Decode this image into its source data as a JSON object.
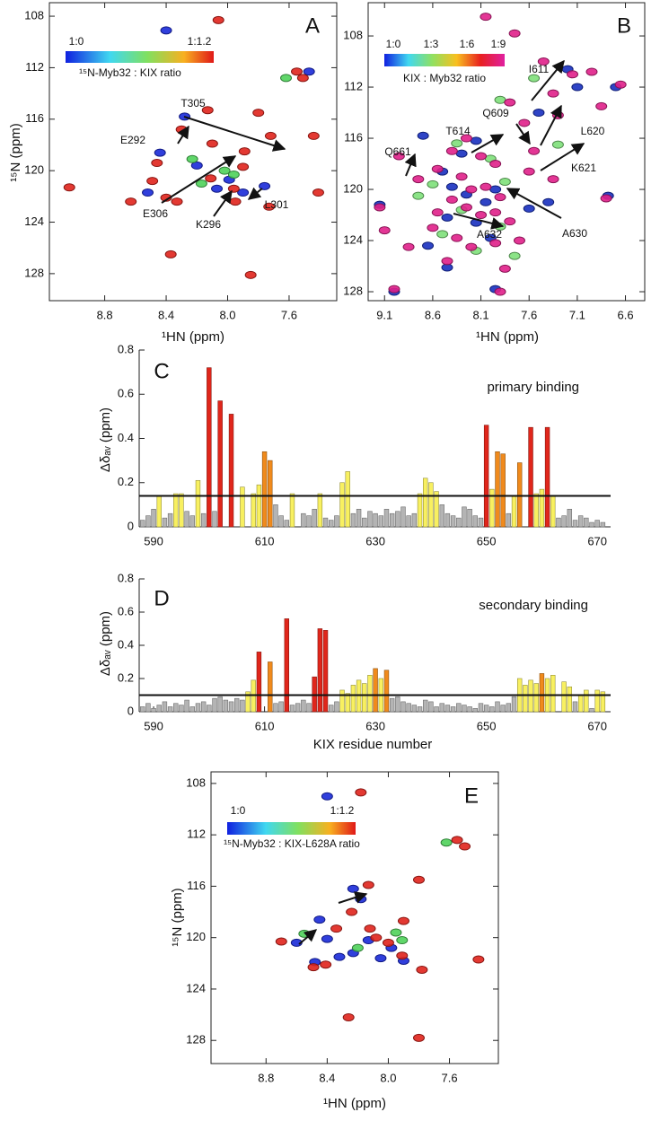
{
  "chart_data": [
    {
      "type": "scatter",
      "panel_label": "A",
      "xlabel": "¹HN (ppm)",
      "ylabel": "¹⁵N (ppm)",
      "xlim": [
        9.16,
        7.29
      ],
      "ylim": [
        130.1,
        106.95
      ],
      "xticks": [
        8.8,
        8.4,
        {
          "value": 8,
          "label": "8.0"
        },
        7.6
      ],
      "yticks": [
        108,
        112,
        116,
        120,
        124,
        128
      ],
      "colorbar": {
        "labels": [
          "1:0",
          "1:1.2"
        ],
        "title": "¹⁵N-Myb32 : KIX ratio"
      },
      "annotations": [
        "T305",
        "E292",
        "E306",
        "K296",
        "L301"
      ],
      "series": [
        {
          "color": "#1a2ad8",
          "x": [
            8.4,
            8.28,
            8.2,
            8.44,
            7.99,
            8.07,
            7.9,
            7.76,
            8.52,
            7.47
          ],
          "y": [
            109.1,
            115.8,
            119.6,
            118.6,
            120.7,
            121.4,
            121.7,
            121.2,
            121.7,
            112.3
          ]
        },
        {
          "color": "#4fd15a",
          "x": [
            8.23,
            7.96,
            7.62,
            8.17,
            8.02
          ],
          "y": [
            119.1,
            120.3,
            112.8,
            121.0,
            120.0
          ]
        },
        {
          "color": "#e0231c",
          "x": [
            8.06,
            7.55,
            7.51,
            7.8,
            8.13,
            8.3,
            7.44,
            7.89,
            8.1,
            7.72,
            7.9,
            8.46,
            8.11,
            8.49,
            7.41,
            7.95,
            7.73,
            8.33,
            8.4,
            8.63,
            7.96,
            8.37,
            7.85,
            9.03
          ],
          "y": [
            108.3,
            112.3,
            112.8,
            115.5,
            115.3,
            116.8,
            117.3,
            118.5,
            117.9,
            117.3,
            119.7,
            119.4,
            120.6,
            120.8,
            121.7,
            122.4,
            122.8,
            122.4,
            122.1,
            122.4,
            121.4,
            126.5,
            128.1,
            121.3
          ]
        }
      ]
    },
    {
      "type": "scatter",
      "panel_label": "B",
      "xlabel": "¹HN (ppm)",
      "xlim": [
        9.27,
        6.4
      ],
      "ylim": [
        128.7,
        105.4
      ],
      "xticks": [
        9.1,
        8.6,
        8.1,
        7.6,
        7.1,
        6.6
      ],
      "yticks": [
        108,
        112,
        116,
        120,
        124,
        128
      ],
      "colorbar": {
        "labels": [
          "1:0",
          "1:3",
          "1:6",
          "1:9"
        ],
        "title": "KIX : Myb32 ratio"
      },
      "annotations": [
        "I611",
        "L620",
        "K621",
        "A630",
        "A632",
        "Q661",
        "T614",
        "Q609"
      ],
      "series": [
        {
          "color": "#1830c0",
          "x": [
            7.1,
            6.7,
            7.5,
            8.15,
            8.3,
            8.5,
            8.4,
            8.25,
            8.05,
            7.95,
            8.15,
            8.45,
            8.65,
            8.0,
            7.6,
            7.4,
            9.15,
            8.45,
            7.95,
            9.0,
            8.7,
            6.78,
            7.2
          ],
          "y": [
            112.0,
            112.0,
            114.0,
            116.2,
            117.2,
            118.6,
            119.8,
            120.4,
            121.0,
            120.0,
            122.6,
            122.2,
            124.4,
            123.8,
            121.5,
            121.0,
            121.2,
            126.1,
            127.8,
            128.0,
            115.8,
            120.5,
            110.6
          ]
        },
        {
          "color": "#7ee07a",
          "x": [
            7.9,
            7.55,
            8.35,
            8.0,
            8.6,
            7.85,
            8.3,
            7.9,
            8.5,
            7.75,
            7.3,
            8.75,
            8.15
          ],
          "y": [
            113.0,
            111.3,
            116.4,
            117.6,
            119.6,
            119.4,
            121.6,
            122.9,
            123.5,
            125.2,
            116.5,
            120.5,
            124.8
          ]
        },
        {
          "color": "#e0208a",
          "x": [
            8.05,
            7.75,
            7.45,
            7.35,
            7.15,
            6.95,
            6.65,
            6.85,
            7.8,
            7.55,
            7.6,
            7.35,
            8.95,
            8.75,
            8.55,
            8.4,
            8.25,
            8.1,
            7.95,
            8.3,
            8.2,
            8.05,
            7.9,
            8.4,
            8.25,
            8.1,
            7.95,
            7.8,
            8.55,
            8.6,
            8.35,
            8.2,
            7.95,
            7.7,
            9.15,
            9.1,
            8.85,
            8.45,
            7.85,
            9.0,
            7.9,
            6.8,
            7.3,
            7.65
          ],
          "y": [
            106.5,
            107.8,
            110.0,
            112.5,
            111.0,
            110.8,
            111.8,
            113.5,
            113.2,
            117.0,
            118.6,
            119.2,
            117.4,
            119.2,
            118.4,
            117.0,
            116.0,
            117.4,
            118.0,
            119.0,
            120.0,
            119.8,
            120.6,
            120.8,
            121.4,
            122.0,
            121.8,
            122.5,
            121.8,
            123.0,
            123.8,
            124.5,
            124.2,
            124.0,
            121.4,
            123.2,
            124.5,
            125.6,
            126.2,
            127.8,
            128.0,
            120.7,
            114.2,
            114.8
          ]
        }
      ]
    },
    {
      "type": "bar",
      "panel_label": "C",
      "title": "primary binding",
      "ylabel": "Δδₐᵥ (ppm)",
      "xlim": [
        587.4,
        672.4
      ],
      "ylim": [
        0,
        0.8
      ],
      "xticks": [
        590,
        610,
        630,
        650,
        670
      ],
      "yticks": [
        0,
        0.2,
        0.4,
        0.6,
        0.8
      ],
      "threshold": 0.14,
      "series": [
        {
          "color": "#b4b4b4",
          "x": [
            588,
            589,
            590,
            592,
            593,
            596,
            597,
            599,
            601,
            612,
            613,
            614,
            617,
            618,
            619,
            621,
            622,
            623,
            626,
            627,
            628,
            629,
            630,
            631,
            632,
            633,
            634,
            635,
            636,
            637,
            642,
            643,
            644,
            645,
            646,
            647,
            648,
            649,
            654,
            663,
            664,
            665,
            666,
            667,
            668,
            669,
            670,
            671
          ],
          "values": [
            0.03,
            0.05,
            0.08,
            0.04,
            0.06,
            0.07,
            0.05,
            0.06,
            0.07,
            0.1,
            0.05,
            0.03,
            0.06,
            0.05,
            0.08,
            0.04,
            0.03,
            0.05,
            0.06,
            0.08,
            0.04,
            0.07,
            0.06,
            0.05,
            0.08,
            0.06,
            0.07,
            0.09,
            0.05,
            0.06,
            0.1,
            0.06,
            0.05,
            0.04,
            0.09,
            0.08,
            0.05,
            0.04,
            0.06,
            0.04,
            0.05,
            0.08,
            0.03,
            0.05,
            0.04,
            0.02,
            0.03,
            0.02
          ]
        },
        {
          "color": "#f8f060",
          "x": [
            591,
            594,
            595,
            598,
            606,
            608,
            609,
            615,
            620,
            624,
            625,
            638,
            639,
            640,
            641,
            651,
            655,
            659,
            660,
            662
          ],
          "values": [
            0.14,
            0.15,
            0.15,
            0.21,
            0.18,
            0.15,
            0.19,
            0.15,
            0.15,
            0.2,
            0.25,
            0.15,
            0.22,
            0.2,
            0.16,
            0.17,
            0.14,
            0.15,
            0.17,
            0.14
          ]
        },
        {
          "color": "#f08a1c",
          "x": [
            610,
            611,
            652,
            653,
            656
          ],
          "values": [
            0.34,
            0.3,
            0.34,
            0.33,
            0.29
          ]
        },
        {
          "color": "#e0261b",
          "x": [
            600,
            602,
            604,
            650,
            658,
            661
          ],
          "values": [
            0.72,
            0.57,
            0.51,
            0.46,
            0.45,
            0.45
          ]
        }
      ]
    },
    {
      "type": "bar",
      "panel_label": "D",
      "title": "secondary binding",
      "ylabel": "Δδₐᵥ (ppm)",
      "xlabel": "KIX residue number",
      "xlim": [
        587.4,
        672.4
      ],
      "ylim": [
        0,
        0.8
      ],
      "xticks": [
        590,
        610,
        630,
        650,
        670
      ],
      "yticks": [
        0,
        0.2,
        0.4,
        0.6,
        0.8
      ],
      "threshold": 0.1,
      "series": [
        {
          "color": "#b4b4b4",
          "x": [
            588,
            589,
            590,
            591,
            592,
            593,
            594,
            595,
            596,
            597,
            598,
            599,
            600,
            601,
            602,
            603,
            604,
            605,
            606,
            612,
            613,
            615,
            616,
            617,
            618,
            622,
            623,
            633,
            634,
            635,
            636,
            637,
            638,
            639,
            640,
            641,
            642,
            643,
            644,
            645,
            646,
            647,
            648,
            649,
            650,
            651,
            652,
            653,
            654,
            655,
            666,
            669
          ],
          "values": [
            0.03,
            0.05,
            0.02,
            0.04,
            0.06,
            0.03,
            0.05,
            0.04,
            0.07,
            0.03,
            0.05,
            0.06,
            0.04,
            0.08,
            0.09,
            0.07,
            0.06,
            0.08,
            0.07,
            0.05,
            0.06,
            0.04,
            0.05,
            0.07,
            0.05,
            0.04,
            0.06,
            0.08,
            0.09,
            0.06,
            0.05,
            0.04,
            0.03,
            0.07,
            0.06,
            0.03,
            0.05,
            0.04,
            0.03,
            0.05,
            0.04,
            0.03,
            0.02,
            0.05,
            0.04,
            0.03,
            0.06,
            0.04,
            0.05,
            0.09,
            0.06,
            0.02
          ]
        },
        {
          "color": "#f8f060",
          "x": [
            607,
            608,
            624,
            625,
            626,
            627,
            628,
            629,
            631,
            656,
            657,
            658,
            659,
            661,
            662,
            664,
            665,
            667,
            668,
            670,
            671
          ],
          "values": [
            0.12,
            0.19,
            0.13,
            0.11,
            0.16,
            0.19,
            0.17,
            0.22,
            0.2,
            0.2,
            0.16,
            0.19,
            0.17,
            0.2,
            0.22,
            0.18,
            0.15,
            0.1,
            0.13,
            0.13,
            0.12
          ]
        },
        {
          "color": "#f08a1c",
          "x": [
            611,
            630,
            632,
            660
          ],
          "values": [
            0.3,
            0.26,
            0.25,
            0.23
          ]
        },
        {
          "color": "#e0261b",
          "x": [
            609,
            614,
            619,
            620,
            621
          ],
          "values": [
            0.36,
            0.56,
            0.21,
            0.5,
            0.49
          ]
        }
      ]
    },
    {
      "type": "scatter",
      "panel_label": "E",
      "xlabel": "¹HN (ppm)",
      "ylabel": "¹⁵N (ppm)",
      "xlim": [
        9.16,
        7.28
      ],
      "ylim": [
        129.8,
        107.1
      ],
      "xticks": [
        8.8,
        8.4,
        {
          "value": 8,
          "label": "8.0"
        },
        7.6
      ],
      "yticks": [
        108,
        112,
        116,
        120,
        124,
        128
      ],
      "colorbar": {
        "labels": [
          "1:0",
          "1:1.2"
        ],
        "title": "¹⁵N-Myb32 : KIX-L628A ratio"
      },
      "series": [
        {
          "color": "#1a2ad8",
          "x": [
            8.4,
            8.23,
            8.45,
            8.6,
            8.4,
            8.32,
            8.23,
            8.13,
            8.05,
            7.98,
            7.9,
            8.18,
            8.48
          ],
          "y": [
            109.0,
            116.2,
            118.6,
            120.4,
            120.1,
            121.5,
            121.2,
            120.2,
            121.6,
            120.8,
            121.8,
            117.0,
            121.9
          ]
        },
        {
          "color": "#4fd15a",
          "x": [
            8.55,
            7.95,
            7.91,
            7.62,
            8.2
          ],
          "y": [
            119.7,
            119.6,
            120.2,
            112.6,
            120.8
          ]
        },
        {
          "color": "#e0231c",
          "x": [
            8.18,
            7.55,
            7.5,
            7.8,
            8.13,
            8.24,
            7.9,
            8.34,
            8.12,
            8.08,
            8.0,
            7.91,
            8.41,
            8.49,
            7.41,
            7.78,
            8.26,
            7.8,
            8.7
          ],
          "y": [
            108.7,
            112.4,
            112.9,
            115.5,
            115.9,
            118.0,
            118.7,
            119.3,
            119.3,
            120.0,
            120.4,
            121.4,
            122.1,
            122.3,
            121.7,
            122.5,
            126.2,
            127.8,
            120.3
          ]
        }
      ]
    }
  ]
}
